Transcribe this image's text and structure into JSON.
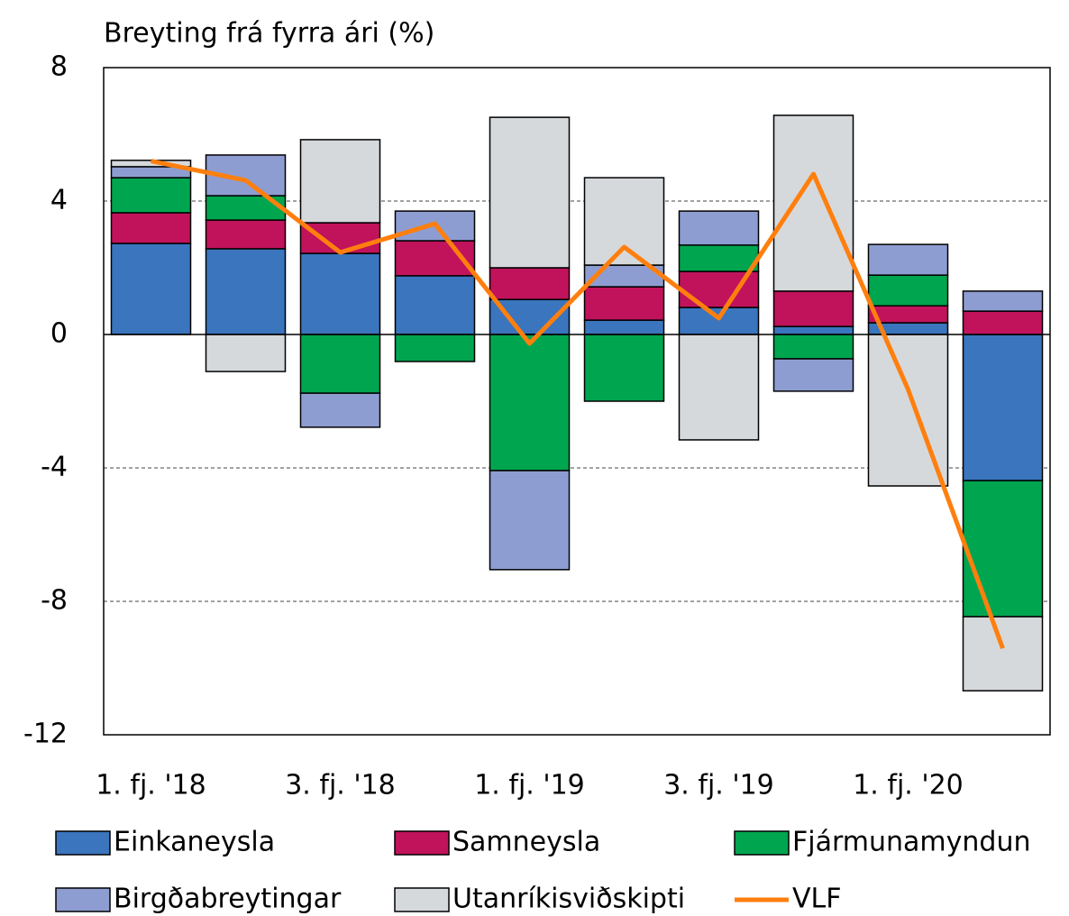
{
  "chart_data": {
    "type": "bar",
    "stacked": true,
    "y_label": "Breyting frá fyrra ári (%)",
    "categories": [
      "1. fj. '18",
      null,
      "3. fj. '18",
      null,
      "1. fj. '19",
      null,
      "3. fj. '19",
      null,
      "1. fj. '20",
      null
    ],
    "series": [
      {
        "name": "Einkaneysla",
        "color": "#3a75bd",
        "values": [
          2.73,
          2.57,
          2.43,
          1.76,
          1.05,
          0.43,
          0.81,
          0.24,
          0.35,
          -4.38
        ]
      },
      {
        "name": "Samneysla",
        "color": "#c0135c",
        "values": [
          0.92,
          0.86,
          0.92,
          1.05,
          0.95,
          1.0,
          1.08,
          1.06,
          0.51,
          0.7
        ]
      },
      {
        "name": "Fjármunamyndun",
        "color": "#00a550",
        "values": [
          1.05,
          0.73,
          -1.76,
          -0.81,
          -4.08,
          -2.0,
          0.79,
          -0.73,
          0.92,
          -4.08
        ]
      },
      {
        "name": "Birgðabreytingar",
        "color": "#8e9dd1",
        "values": [
          0.33,
          1.22,
          -1.02,
          0.89,
          -2.97,
          0.65,
          1.02,
          -0.97,
          0.92,
          0.6
        ]
      },
      {
        "name": "Utanríkisviðskipti",
        "color": "#d6d9dc",
        "values": [
          0.19,
          -1.11,
          2.49,
          0,
          4.51,
          2.62,
          -3.16,
          5.27,
          -4.54,
          -2.22
        ]
      },
      {
        "name": "VLF",
        "type": "line",
        "color": "#ff7f0e",
        "values": [
          5.2,
          4.62,
          2.46,
          3.32,
          -0.27,
          2.62,
          0.49,
          4.81,
          -1.65,
          -9.41
        ]
      }
    ],
    "ylim": [
      -12,
      8
    ],
    "yticks": [
      -12,
      -8,
      -4,
      0,
      4,
      8
    ],
    "grid": true
  }
}
